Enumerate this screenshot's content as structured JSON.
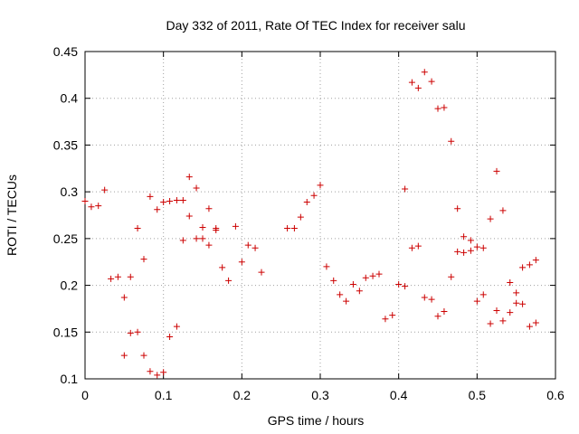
{
  "chart_data": {
    "type": "scatter",
    "title": "Day 332 of 2011, Rate Of TEC Index for receiver salu",
    "xlabel": "GPS time / hours",
    "ylabel": "ROTI / TECUs",
    "xlim": [
      0,
      0.6
    ],
    "ylim": [
      0.1,
      0.45
    ],
    "xticks": [
      "0",
      "0.1",
      "0.2",
      "0.3",
      "0.4",
      "0.5",
      "0.6"
    ],
    "yticks": [
      "0.1",
      "0.15",
      "0.2",
      "0.25",
      "0.3",
      "0.35",
      "0.4",
      "0.45"
    ],
    "grid": true,
    "marker": "+",
    "color": "#cc0000",
    "series": [
      {
        "points": [
          [
            0.0,
            0.29
          ],
          [
            0.008,
            0.284
          ],
          [
            0.017,
            0.285
          ],
          [
            0.025,
            0.302
          ],
          [
            0.033,
            0.207
          ],
          [
            0.042,
            0.209
          ],
          [
            0.05,
            0.187
          ],
          [
            0.05,
            0.125
          ],
          [
            0.058,
            0.209
          ],
          [
            0.058,
            0.149
          ],
          [
            0.067,
            0.15
          ],
          [
            0.067,
            0.261
          ],
          [
            0.075,
            0.228
          ],
          [
            0.075,
            0.125
          ],
          [
            0.083,
            0.295
          ],
          [
            0.083,
            0.108
          ],
          [
            0.092,
            0.281
          ],
          [
            0.092,
            0.104
          ],
          [
            0.1,
            0.289
          ],
          [
            0.1,
            0.107
          ],
          [
            0.108,
            0.29
          ],
          [
            0.108,
            0.145
          ],
          [
            0.117,
            0.291
          ],
          [
            0.117,
            0.156
          ],
          [
            0.125,
            0.291
          ],
          [
            0.125,
            0.248
          ],
          [
            0.133,
            0.316
          ],
          [
            0.133,
            0.274
          ],
          [
            0.142,
            0.304
          ],
          [
            0.142,
            0.25
          ],
          [
            0.15,
            0.25
          ],
          [
            0.15,
            0.262
          ],
          [
            0.158,
            0.282
          ],
          [
            0.158,
            0.243
          ],
          [
            0.167,
            0.259
          ],
          [
            0.167,
            0.261
          ],
          [
            0.175,
            0.219
          ],
          [
            0.183,
            0.205
          ],
          [
            0.192,
            0.263
          ],
          [
            0.2,
            0.225
          ],
          [
            0.208,
            0.243
          ],
          [
            0.217,
            0.24
          ],
          [
            0.225,
            0.214
          ],
          [
            0.258,
            0.261
          ],
          [
            0.267,
            0.261
          ],
          [
            0.275,
            0.273
          ],
          [
            0.283,
            0.289
          ],
          [
            0.292,
            0.296
          ],
          [
            0.3,
            0.307
          ],
          [
            0.308,
            0.22
          ],
          [
            0.317,
            0.205
          ],
          [
            0.325,
            0.19
          ],
          [
            0.333,
            0.183
          ],
          [
            0.342,
            0.201
          ],
          [
            0.35,
            0.194
          ],
          [
            0.358,
            0.208
          ],
          [
            0.367,
            0.21
          ],
          [
            0.375,
            0.212
          ],
          [
            0.383,
            0.164
          ],
          [
            0.392,
            0.168
          ],
          [
            0.4,
            0.201
          ],
          [
            0.408,
            0.199
          ],
          [
            0.408,
            0.303
          ],
          [
            0.417,
            0.417
          ],
          [
            0.417,
            0.24
          ],
          [
            0.425,
            0.411
          ],
          [
            0.425,
            0.242
          ],
          [
            0.433,
            0.428
          ],
          [
            0.433,
            0.187
          ],
          [
            0.442,
            0.418
          ],
          [
            0.442,
            0.185
          ],
          [
            0.45,
            0.389
          ],
          [
            0.45,
            0.167
          ],
          [
            0.458,
            0.39
          ],
          [
            0.458,
            0.172
          ],
          [
            0.467,
            0.354
          ],
          [
            0.467,
            0.209
          ],
          [
            0.475,
            0.282
          ],
          [
            0.475,
            0.236
          ],
          [
            0.483,
            0.252
          ],
          [
            0.483,
            0.235
          ],
          [
            0.492,
            0.248
          ],
          [
            0.492,
            0.237
          ],
          [
            0.5,
            0.241
          ],
          [
            0.5,
            0.183
          ],
          [
            0.508,
            0.24
          ],
          [
            0.508,
            0.19
          ],
          [
            0.517,
            0.271
          ],
          [
            0.517,
            0.159
          ],
          [
            0.525,
            0.322
          ],
          [
            0.525,
            0.173
          ],
          [
            0.533,
            0.28
          ],
          [
            0.533,
            0.162
          ],
          [
            0.542,
            0.203
          ],
          [
            0.542,
            0.171
          ],
          [
            0.55,
            0.192
          ],
          [
            0.55,
            0.181
          ],
          [
            0.558,
            0.219
          ],
          [
            0.558,
            0.18
          ],
          [
            0.567,
            0.222
          ],
          [
            0.567,
            0.156
          ],
          [
            0.575,
            0.227
          ],
          [
            0.575,
            0.16
          ]
        ]
      }
    ]
  }
}
